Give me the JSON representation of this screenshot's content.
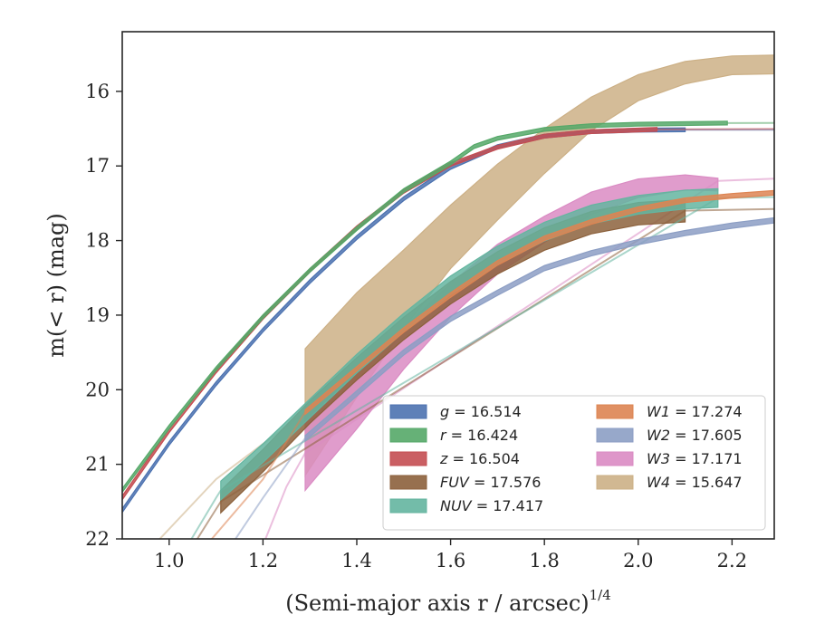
{
  "chart_data": {
    "type": "line",
    "xlabel": "(Semi-major axis r / arcsec)",
    "xlabel_exponent": "1/4",
    "ylabel": "m(< r) (mag)",
    "xlim": [
      0.9,
      2.29
    ],
    "ylim": [
      22,
      15.2
    ],
    "y_inverted": true,
    "x_ticks": [
      "1.0",
      "1.2",
      "1.4",
      "1.6",
      "1.8",
      "2.0",
      "2.2"
    ],
    "y_ticks": [
      "16",
      "17",
      "18",
      "19",
      "20",
      "21",
      "22"
    ],
    "legend": {
      "placement": "lower-right",
      "columns": 2
    },
    "series": [
      {
        "name": "g = 16.514",
        "symbol": "g",
        "value": "16.514",
        "color": "#4c72b0",
        "measured": [
          [
            0.9,
            21.62
          ],
          [
            1.0,
            20.72
          ],
          [
            1.1,
            19.92
          ],
          [
            1.2,
            19.2
          ],
          [
            1.3,
            18.55
          ],
          [
            1.4,
            17.96
          ],
          [
            1.5,
            17.44
          ],
          [
            1.6,
            17.02
          ],
          [
            1.7,
            16.74
          ],
          [
            1.8,
            16.6
          ],
          [
            1.9,
            16.54
          ],
          [
            2.0,
            16.52
          ],
          [
            2.1,
            16.515
          ]
        ],
        "model": [
          [
            2.1,
            16.515
          ],
          [
            2.29,
            16.514
          ]
        ],
        "band": 0.05
      },
      {
        "name": "r = 16.424",
        "symbol": "r",
        "value": "16.424",
        "color": "#55a868",
        "measured": [
          [
            0.9,
            21.35
          ],
          [
            1.0,
            20.5
          ],
          [
            1.1,
            19.72
          ],
          [
            1.2,
            19.02
          ],
          [
            1.3,
            18.4
          ],
          [
            1.4,
            17.84
          ],
          [
            1.5,
            17.33
          ],
          [
            1.6,
            16.96
          ],
          [
            1.65,
            16.74
          ],
          [
            1.7,
            16.63
          ],
          [
            1.8,
            16.51
          ],
          [
            1.9,
            16.46
          ],
          [
            2.0,
            16.44
          ],
          [
            2.19,
            16.425
          ]
        ],
        "model": [
          [
            2.19,
            16.425
          ],
          [
            2.29,
            16.424
          ]
        ],
        "band": 0.05
      },
      {
        "name": "z = 16.504",
        "symbol": "z",
        "value": "16.504",
        "color": "#c44e52",
        "measured": [
          [
            0.9,
            21.45
          ],
          [
            1.0,
            20.55
          ],
          [
            1.1,
            19.75
          ],
          [
            1.2,
            19.03
          ],
          [
            1.3,
            18.4
          ],
          [
            1.4,
            17.83
          ],
          [
            1.5,
            17.34
          ],
          [
            1.6,
            16.98
          ],
          [
            1.7,
            16.75
          ],
          [
            1.8,
            16.6
          ],
          [
            1.9,
            16.54
          ],
          [
            2.04,
            16.51
          ]
        ],
        "model": [
          [
            2.04,
            16.51
          ],
          [
            2.29,
            16.504
          ]
        ],
        "band": 0.05
      },
      {
        "name": "FUV = 17.576",
        "symbol": "FUV",
        "value": "17.576",
        "color": "#8c613c",
        "measured": [
          [
            1.11,
            21.5
          ],
          [
            1.2,
            20.95
          ],
          [
            1.3,
            20.3
          ],
          [
            1.4,
            19.72
          ],
          [
            1.5,
            19.18
          ],
          [
            1.6,
            18.7
          ],
          [
            1.7,
            18.3
          ],
          [
            1.8,
            17.98
          ],
          [
            1.9,
            17.76
          ],
          [
            2.0,
            17.64
          ],
          [
            2.1,
            17.6
          ]
        ],
        "model": [
          [
            1.0,
            22.6
          ],
          [
            1.1,
            21.6
          ],
          [
            1.11,
            21.5
          ],
          [
            2.1,
            17.6
          ],
          [
            2.29,
            17.576
          ]
        ],
        "band": 0.3
      },
      {
        "name": "NUV = 17.417",
        "symbol": "NUV",
        "value": "17.417",
        "color": "#64b5a0",
        "measured": [
          [
            1.11,
            21.35
          ],
          [
            1.2,
            20.85
          ],
          [
            1.3,
            20.25
          ],
          [
            1.4,
            19.65
          ],
          [
            1.5,
            19.1
          ],
          [
            1.6,
            18.6
          ],
          [
            1.7,
            18.2
          ],
          [
            1.8,
            17.88
          ],
          [
            1.9,
            17.65
          ],
          [
            2.0,
            17.52
          ],
          [
            2.1,
            17.45
          ],
          [
            2.17,
            17.43
          ]
        ],
        "model": [
          [
            1.0,
            22.5
          ],
          [
            1.1,
            21.45
          ],
          [
            1.11,
            21.35
          ],
          [
            2.17,
            17.43
          ],
          [
            2.29,
            17.417
          ]
        ],
        "band": 0.25
      },
      {
        "name": "W1 = 17.274",
        "symbol": "W1",
        "value": "17.274",
        "color": "#dd8452",
        "measured": [
          [
            1.29,
            20.3
          ],
          [
            1.4,
            19.72
          ],
          [
            1.5,
            19.2
          ],
          [
            1.6,
            18.73
          ],
          [
            1.7,
            18.3
          ],
          [
            1.8,
            17.97
          ],
          [
            1.9,
            17.75
          ],
          [
            2.0,
            17.58
          ],
          [
            2.1,
            17.46
          ],
          [
            2.2,
            17.4
          ],
          [
            2.29,
            17.36
          ]
        ],
        "model": [
          [
            1.05,
            22.3
          ],
          [
            1.2,
            21.2
          ],
          [
            1.29,
            20.3
          ]
        ],
        "band": 0.06
      },
      {
        "name": "W2 = 17.605",
        "symbol": "W2",
        "value": "17.605",
        "color": "#8c9ec4",
        "measured": [
          [
            1.29,
            20.65
          ],
          [
            1.4,
            20.05
          ],
          [
            1.5,
            19.5
          ],
          [
            1.6,
            19.05
          ],
          [
            1.7,
            18.7
          ],
          [
            1.8,
            18.37
          ],
          [
            1.9,
            18.17
          ],
          [
            2.0,
            18.02
          ],
          [
            2.1,
            17.9
          ],
          [
            2.2,
            17.8
          ],
          [
            2.29,
            17.73
          ]
        ],
        "model": [
          [
            1.12,
            22.2
          ],
          [
            1.2,
            21.45
          ],
          [
            1.29,
            20.65
          ]
        ],
        "band": 0.07
      },
      {
        "name": "W3 = 17.171",
        "symbol": "W3",
        "value": "17.171",
        "color": "#da8bc3",
        "measured": [
          [
            1.29,
            20.85
          ],
          [
            1.4,
            20.15
          ],
          [
            1.5,
            19.45
          ],
          [
            1.6,
            18.8
          ],
          [
            1.7,
            18.25
          ],
          [
            1.8,
            17.85
          ],
          [
            1.9,
            17.5
          ],
          [
            2.0,
            17.3
          ],
          [
            2.1,
            17.22
          ],
          [
            2.17,
            17.25
          ]
        ],
        "model": [
          [
            1.18,
            22.4
          ],
          [
            1.25,
            21.3
          ],
          [
            1.29,
            20.85
          ],
          [
            2.17,
            17.2
          ],
          [
            2.29,
            17.171
          ]
        ],
        "band_list": [
          1.0,
          0.75,
          0.55,
          0.45,
          0.4,
          0.35,
          0.3,
          0.25,
          0.2,
          0.17
        ]
      },
      {
        "name": "W4 = 15.647",
        "symbol": "W4",
        "value": "15.647",
        "color": "#ccb086",
        "measured": [
          [
            1.29,
            20.3
          ],
          [
            1.4,
            19.4
          ],
          [
            1.5,
            18.65
          ],
          [
            1.6,
            17.95
          ],
          [
            1.7,
            17.35
          ],
          [
            1.8,
            16.8
          ],
          [
            1.9,
            16.3
          ],
          [
            2.0,
            15.95
          ],
          [
            2.1,
            15.75
          ],
          [
            2.2,
            15.65
          ],
          [
            2.29,
            15.64
          ]
        ],
        "model": [
          [
            0.95,
            22.2
          ],
          [
            1.1,
            21.2
          ],
          [
            1.29,
            20.3
          ]
        ],
        "band_list": [
          1.7,
          1.4,
          1.05,
          0.85,
          0.75,
          0.6,
          0.45,
          0.35,
          0.3,
          0.25,
          0.25
        ]
      }
    ]
  }
}
